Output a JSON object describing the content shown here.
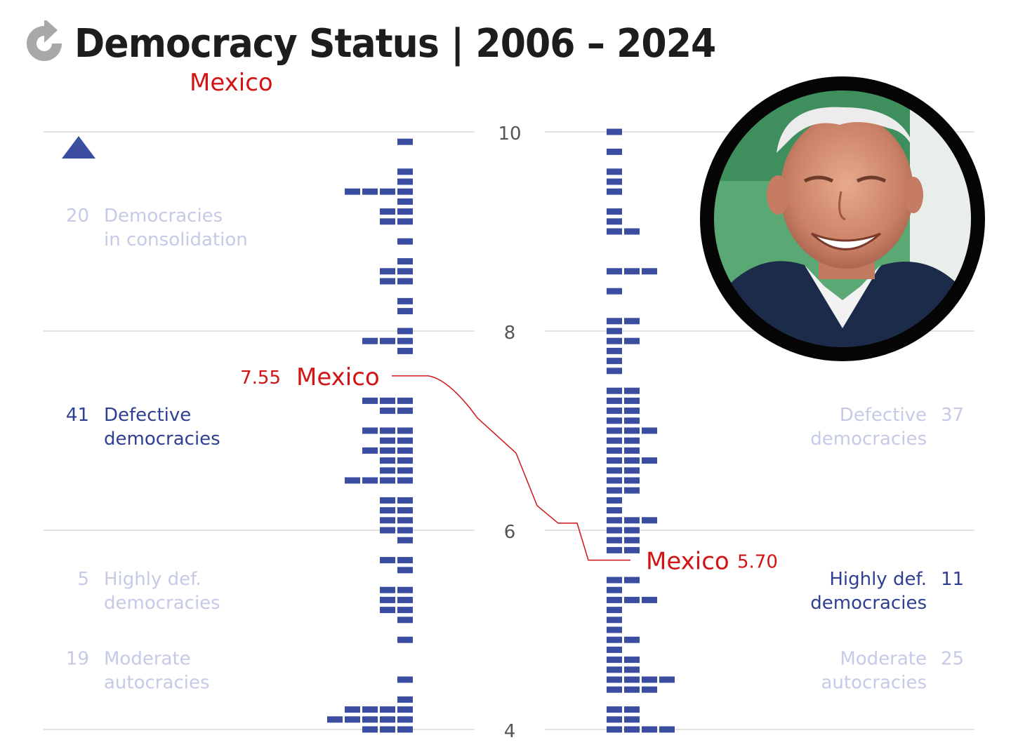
{
  "header": {
    "title": "Democracy Status | 2006 – 2024",
    "subtitle": "Mexico",
    "logo_icon": "circular-arrow-logo-icon"
  },
  "portrait": {
    "icon": "politician-portrait-photo",
    "ring_color": "#000000"
  },
  "colors": {
    "square": "#3b4da0",
    "highlight": "#d21414",
    "muted": "#c5cae6",
    "active_label": "#2f3f92",
    "grid": "#e2e2e2",
    "axis_text": "#555555"
  },
  "chart_data": {
    "type": "dot-histogram",
    "title": "Democracy Status | 2006 – 2024",
    "subtitle": "Mexico",
    "y_axis": {
      "ticks": [
        "10",
        "8",
        "6",
        "4"
      ],
      "ylim": [
        4,
        10
      ],
      "grid": true
    },
    "series": [
      {
        "year": "2006",
        "side": "left",
        "bins": [
          {
            "y": 9.9,
            "count": 1
          },
          {
            "y": 9.6,
            "count": 1
          },
          {
            "y": 9.5,
            "count": 1
          },
          {
            "y": 9.4,
            "count": 4
          },
          {
            "y": 9.3,
            "count": 1
          },
          {
            "y": 9.2,
            "count": 2
          },
          {
            "y": 9.1,
            "count": 2
          },
          {
            "y": 8.9,
            "count": 1
          },
          {
            "y": 8.7,
            "count": 1
          },
          {
            "y": 8.6,
            "count": 2
          },
          {
            "y": 8.5,
            "count": 2
          },
          {
            "y": 8.3,
            "count": 1
          },
          {
            "y": 8.2,
            "count": 1
          },
          {
            "y": 8.0,
            "count": 1
          },
          {
            "y": 7.9,
            "count": 3
          },
          {
            "y": 7.8,
            "count": 1
          },
          {
            "y": 7.55,
            "count": 0
          },
          {
            "y": 7.3,
            "count": 3
          },
          {
            "y": 7.2,
            "count": 2
          },
          {
            "y": 7.0,
            "count": 3
          },
          {
            "y": 6.9,
            "count": 2
          },
          {
            "y": 6.8,
            "count": 3
          },
          {
            "y": 6.7,
            "count": 2
          },
          {
            "y": 6.6,
            "count": 2
          },
          {
            "y": 6.5,
            "count": 4
          },
          {
            "y": 6.3,
            "count": 2
          },
          {
            "y": 6.2,
            "count": 2
          },
          {
            "y": 6.1,
            "count": 2
          },
          {
            "y": 6.0,
            "count": 2
          },
          {
            "y": 5.9,
            "count": 1
          },
          {
            "y": 5.7,
            "count": 2
          },
          {
            "y": 5.6,
            "count": 1
          },
          {
            "y": 5.4,
            "count": 2
          },
          {
            "y": 5.3,
            "count": 2
          },
          {
            "y": 5.2,
            "count": 2
          },
          {
            "y": 5.1,
            "count": 1
          },
          {
            "y": 4.9,
            "count": 1
          },
          {
            "y": 4.5,
            "count": 1
          },
          {
            "y": 4.3,
            "count": 1
          },
          {
            "y": 4.2,
            "count": 4
          },
          {
            "y": 4.1,
            "count": 5
          },
          {
            "y": 4.0,
            "count": 3
          }
        ],
        "highlight": {
          "country": "Mexico",
          "value": 7.55,
          "value_label": "7.55"
        },
        "categories": [
          {
            "count": "20",
            "label": [
              "Democracies",
              "in consolidation"
            ],
            "y": 9.1,
            "active": false
          },
          {
            "count": "41",
            "label": [
              "Defective",
              "democracies"
            ],
            "y": 7.1,
            "active": true
          },
          {
            "count": "5",
            "label": [
              "Highly def.",
              "democracies"
            ],
            "y": 5.45,
            "active": false
          },
          {
            "count": "19",
            "label": [
              "Moderate",
              "autocracies"
            ],
            "y": 4.65,
            "active": false
          }
        ]
      },
      {
        "year": "2024",
        "side": "right",
        "bins": [
          {
            "y": 10.0,
            "count": 1
          },
          {
            "y": 9.8,
            "count": 1
          },
          {
            "y": 9.6,
            "count": 1
          },
          {
            "y": 9.5,
            "count": 1
          },
          {
            "y": 9.4,
            "count": 1
          },
          {
            "y": 9.2,
            "count": 1
          },
          {
            "y": 9.1,
            "count": 1
          },
          {
            "y": 9.0,
            "count": 2
          },
          {
            "y": 8.6,
            "count": 3
          },
          {
            "y": 8.4,
            "count": 1
          },
          {
            "y": 8.1,
            "count": 2
          },
          {
            "y": 8.0,
            "count": 1
          },
          {
            "y": 7.9,
            "count": 2
          },
          {
            "y": 7.8,
            "count": 1
          },
          {
            "y": 7.7,
            "count": 1
          },
          {
            "y": 7.6,
            "count": 1
          },
          {
            "y": 7.4,
            "count": 2
          },
          {
            "y": 7.3,
            "count": 2
          },
          {
            "y": 7.2,
            "count": 2
          },
          {
            "y": 7.1,
            "count": 2
          },
          {
            "y": 7.0,
            "count": 3
          },
          {
            "y": 6.9,
            "count": 2
          },
          {
            "y": 6.8,
            "count": 2
          },
          {
            "y": 6.7,
            "count": 3
          },
          {
            "y": 6.6,
            "count": 2
          },
          {
            "y": 6.5,
            "count": 2
          },
          {
            "y": 6.4,
            "count": 2
          },
          {
            "y": 6.3,
            "count": 1
          },
          {
            "y": 6.2,
            "count": 1
          },
          {
            "y": 6.1,
            "count": 3
          },
          {
            "y": 6.0,
            "count": 2
          },
          {
            "y": 5.9,
            "count": 2
          },
          {
            "y": 5.8,
            "count": 2
          },
          {
            "y": 5.7,
            "count": 0
          },
          {
            "y": 5.5,
            "count": 2
          },
          {
            "y": 5.4,
            "count": 1
          },
          {
            "y": 5.3,
            "count": 3
          },
          {
            "y": 5.2,
            "count": 1
          },
          {
            "y": 5.1,
            "count": 1
          },
          {
            "y": 5.0,
            "count": 1
          },
          {
            "y": 4.9,
            "count": 2
          },
          {
            "y": 4.8,
            "count": 1
          },
          {
            "y": 4.7,
            "count": 2
          },
          {
            "y": 4.6,
            "count": 2
          },
          {
            "y": 4.5,
            "count": 4
          },
          {
            "y": 4.4,
            "count": 3
          },
          {
            "y": 4.2,
            "count": 2
          },
          {
            "y": 4.1,
            "count": 2
          },
          {
            "y": 4.0,
            "count": 4
          }
        ],
        "highlight": {
          "country": "Mexico",
          "value": 5.7,
          "value_label": "5.70"
        },
        "categories": [
          {
            "count": "37",
            "label": [
              "Defective",
              "democracies"
            ],
            "y": 7.1,
            "active": false
          },
          {
            "count": "11",
            "label": [
              "Highly def.",
              "democracies"
            ],
            "y": 5.45,
            "active": true
          },
          {
            "count": "25",
            "label": [
              "Moderate",
              "autocracies"
            ],
            "y": 4.65,
            "active": false
          }
        ]
      }
    ],
    "connector": {
      "from": 7.55,
      "to": 5.7
    },
    "annotation_icon": "triangle-up-icon"
  }
}
